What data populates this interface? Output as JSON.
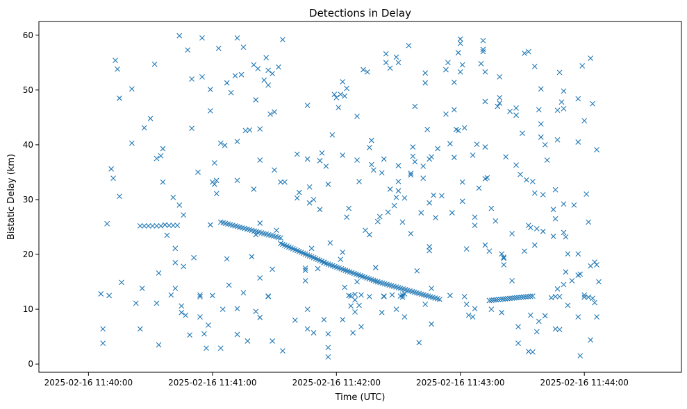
{
  "chart_data": {
    "type": "scatter",
    "title": "Detections in Delay",
    "xlabel": "Time (UTC)",
    "ylabel": "Bistatic Delay (km)",
    "marker": "x",
    "color": "#1f77b4",
    "grid": false,
    "legend": "none",
    "x_range": [
      "2025-02-16 11:39:36",
      "2025-02-16 11:44:47"
    ],
    "ylim": [
      -1.5,
      62.5
    ],
    "x_ticks": [
      {
        "t": "2025-02-16 11:40:00",
        "label": "2025-02-16 11:40:00"
      },
      {
        "t": "2025-02-16 11:41:00",
        "label": "2025-02-16 11:41:00"
      },
      {
        "t": "2025-02-16 11:42:00",
        "label": "2025-02-16 11:42:00"
      },
      {
        "t": "2025-02-16 11:43:00",
        "label": "2025-02-16 11:43:00"
      },
      {
        "t": "2025-02-16 11:44:00",
        "label": "2025-02-16 11:44:00"
      }
    ],
    "y_ticks": [
      0,
      10,
      20,
      30,
      40,
      50,
      60
    ],
    "x_time_unit": "seconds past 2025-02-16 11:39:00",
    "track_segments": [
      {
        "t_start": 85,
        "t_end": 95,
        "delay_start": 25.2,
        "delay_end": 25.2,
        "count": 6
      },
      {
        "t_start": 99,
        "t_end": 103,
        "delay_start": 25.3,
        "delay_end": 25.3,
        "count": 3
      },
      {
        "t_start": 124,
        "t_end": 153,
        "delay_start": 25.9,
        "delay_end": 23.0,
        "count": 26
      },
      {
        "t_start": 153,
        "t_end": 174,
        "delay_start": 22.0,
        "delay_end": 18.6,
        "count": 22
      },
      {
        "t_start": 174,
        "t_end": 200,
        "delay_start": 18.5,
        "delay_end": 15.0,
        "count": 26
      },
      {
        "t_start": 200,
        "t_end": 230,
        "delay_start": 15.0,
        "delay_end": 11.8,
        "count": 28
      },
      {
        "t_start": 254,
        "t_end": 275,
        "delay_start": 11.6,
        "delay_end": 12.4,
        "count": 20
      }
    ],
    "scatter_points": [
      [
        66,
        12.8
      ],
      [
        67,
        6.4
      ],
      [
        67,
        3.8
      ],
      [
        69,
        25.6
      ],
      [
        70,
        12.5
      ],
      [
        71,
        35.6
      ],
      [
        72,
        33.9
      ],
      [
        73,
        55.4
      ],
      [
        74,
        53.8
      ],
      [
        75,
        48.5
      ],
      [
        75,
        30.6
      ],
      [
        76,
        14.9
      ],
      [
        81,
        50.2
      ],
      [
        81,
        40.3
      ],
      [
        83,
        11.1
      ],
      [
        85,
        6.4
      ],
      [
        86,
        13.8
      ],
      [
        87,
        43.1
      ],
      [
        90,
        44.8
      ],
      [
        92,
        54.7
      ],
      [
        93,
        37.5
      ],
      [
        93,
        11.1
      ],
      [
        94,
        3.5
      ],
      [
        94,
        16.6
      ],
      [
        95,
        38.0
      ],
      [
        96,
        33.2
      ],
      [
        96,
        39.3
      ],
      [
        97,
        25.4
      ],
      [
        98,
        23.5
      ],
      [
        100,
        12.6
      ],
      [
        101,
        30.4
      ],
      [
        102,
        21.1
      ],
      [
        102,
        18.5
      ],
      [
        102,
        13.8
      ],
      [
        104,
        59.9
      ],
      [
        104,
        29.0
      ],
      [
        105,
        10.6
      ],
      [
        105,
        9.4
      ],
      [
        106,
        27.2
      ],
      [
        106,
        17.8
      ],
      [
        107,
        8.9
      ],
      [
        108,
        57.3
      ],
      [
        109,
        5.3
      ],
      [
        110,
        43.0
      ],
      [
        110,
        52.0
      ],
      [
        111,
        19.4
      ],
      [
        113,
        35.0
      ],
      [
        114,
        12.6
      ],
      [
        114,
        12.3
      ],
      [
        114,
        8.6
      ],
      [
        115,
        59.5
      ],
      [
        115,
        52.4
      ],
      [
        116,
        5.5
      ],
      [
        117,
        2.9
      ],
      [
        118,
        7.1
      ],
      [
        119,
        46.2
      ],
      [
        119,
        50.1
      ],
      [
        119,
        25.4
      ],
      [
        120,
        33.2
      ],
      [
        120,
        12.5
      ],
      [
        121,
        36.7
      ],
      [
        121,
        32.8
      ],
      [
        122,
        31.1
      ],
      [
        122,
        33.5
      ],
      [
        123,
        57.6
      ],
      [
        124,
        40.3
      ],
      [
        124,
        2.9
      ],
      [
        125,
        10.0
      ],
      [
        126,
        39.9
      ],
      [
        127,
        19.2
      ],
      [
        127,
        51.3
      ],
      [
        128,
        14.4
      ],
      [
        129,
        49.5
      ],
      [
        131,
        52.6
      ],
      [
        132,
        59.5
      ],
      [
        132,
        40.6
      ],
      [
        132,
        33.5
      ],
      [
        132,
        10.1
      ],
      [
        132,
        5.4
      ],
      [
        134,
        52.8
      ],
      [
        135,
        13.0
      ],
      [
        135,
        57.8
      ],
      [
        136,
        42.6
      ],
      [
        137,
        4.2
      ],
      [
        138,
        42.7
      ],
      [
        139,
        19.6
      ],
      [
        140,
        31.9
      ],
      [
        140,
        54.6
      ],
      [
        141,
        48.2
      ],
      [
        141,
        23.6
      ],
      [
        141,
        9.6
      ],
      [
        142,
        53.9
      ],
      [
        143,
        42.9
      ],
      [
        143,
        37.2
      ],
      [
        143,
        25.7
      ],
      [
        143,
        15.7
      ],
      [
        143,
        8.5
      ],
      [
        145,
        51.8
      ],
      [
        146,
        55.9
      ],
      [
        147,
        12.4
      ],
      [
        147,
        12.3
      ],
      [
        147,
        53.6
      ],
      [
        147,
        50.9
      ],
      [
        148,
        45.6
      ],
      [
        149,
        53.0
      ],
      [
        149,
        17.3
      ],
      [
        149,
        4.2
      ],
      [
        150,
        35.4
      ],
      [
        150,
        46.0
      ],
      [
        151,
        24.4
      ],
      [
        152,
        54.2
      ],
      [
        153,
        33.2
      ],
      [
        154,
        59.2
      ],
      [
        154,
        2.4
      ],
      [
        155,
        33.2
      ],
      [
        160,
        8.0
      ],
      [
        161,
        38.3
      ],
      [
        161,
        30.3
      ],
      [
        162,
        31.3
      ],
      [
        165,
        17.1
      ],
      [
        165,
        17.5
      ],
      [
        165,
        15.2
      ],
      [
        166,
        47.2
      ],
      [
        166,
        37.4
      ],
      [
        166,
        10.0
      ],
      [
        166,
        6.4
      ],
      [
        167,
        32.3
      ],
      [
        167,
        29.4
      ],
      [
        168,
        21.1
      ],
      [
        169,
        30.0
      ],
      [
        169,
        5.7
      ],
      [
        171,
        17.4
      ],
      [
        172,
        28.2
      ],
      [
        172,
        37.1
      ],
      [
        173,
        38.5
      ],
      [
        174,
        8.1
      ],
      [
        175,
        36.1
      ],
      [
        176,
        32.8
      ],
      [
        176,
        5.5
      ],
      [
        176,
        3.0
      ],
      [
        176,
        1.3
      ],
      [
        177,
        22.1
      ],
      [
        178,
        41.8
      ],
      [
        179,
        49.2
      ],
      [
        180,
        48.6
      ],
      [
        181,
        46.8
      ],
      [
        182,
        49.2
      ],
      [
        182,
        19.1
      ],
      [
        183,
        20.4
      ],
      [
        183,
        38.1
      ],
      [
        183,
        51.5
      ],
      [
        183,
        8.1
      ],
      [
        184,
        48.9
      ],
      [
        184,
        14.0
      ],
      [
        185,
        50.3
      ],
      [
        185,
        26.8
      ],
      [
        186,
        28.4
      ],
      [
        186,
        12.5
      ],
      [
        187,
        12.4
      ],
      [
        187,
        10.6
      ],
      [
        188,
        5.7
      ],
      [
        189,
        12.7
      ],
      [
        189,
        9.5
      ],
      [
        189,
        11.7
      ],
      [
        190,
        45.2
      ],
      [
        190,
        37.2
      ],
      [
        190,
        15.0
      ],
      [
        191,
        33.3
      ],
      [
        191,
        10.7
      ],
      [
        192,
        12.6
      ],
      [
        192,
        6.8
      ],
      [
        193,
        53.7
      ],
      [
        194,
        24.4
      ],
      [
        195,
        53.3
      ],
      [
        196,
        39.5
      ],
      [
        196,
        23.6
      ],
      [
        196,
        12.3
      ],
      [
        197,
        40.8
      ],
      [
        197,
        36.4
      ],
      [
        198,
        35.4
      ],
      [
        199,
        17.6
      ],
      [
        199,
        17.6
      ],
      [
        200,
        26.0
      ],
      [
        201,
        26.9
      ],
      [
        202,
        9.4
      ],
      [
        202,
        34.9
      ],
      [
        203,
        12.4
      ],
      [
        203,
        12.3
      ],
      [
        203,
        37.4
      ],
      [
        204,
        56.6
      ],
      [
        204,
        55.0
      ],
      [
        205,
        27.7
      ],
      [
        206,
        54.0
      ],
      [
        206,
        31.9
      ],
      [
        207,
        12.6
      ],
      [
        208,
        28.9
      ],
      [
        209,
        56.0
      ],
      [
        209,
        30.4
      ],
      [
        209,
        10.0
      ],
      [
        210,
        55.0
      ],
      [
        210,
        33.3
      ],
      [
        210,
        36.2
      ],
      [
        210,
        31.6
      ],
      [
        211,
        12.4
      ],
      [
        212,
        12.6
      ],
      [
        212,
        25.9
      ],
      [
        212,
        12.2
      ],
      [
        213,
        30.3
      ],
      [
        213,
        12.8
      ],
      [
        213,
        8.6
      ],
      [
        215,
        58.1
      ],
      [
        216,
        34.8
      ],
      [
        216,
        23.8
      ],
      [
        216,
        34.5
      ],
      [
        217,
        39.6
      ],
      [
        217,
        37.9
      ],
      [
        218,
        47.0
      ],
      [
        218,
        36.9
      ],
      [
        219,
        17.0
      ],
      [
        220,
        3.9
      ],
      [
        221,
        27.6
      ],
      [
        222,
        36.1
      ],
      [
        222,
        33.9
      ],
      [
        223,
        10.9
      ],
      [
        223,
        51.3
      ],
      [
        223,
        53.1
      ],
      [
        224,
        42.8
      ],
      [
        225,
        29.4
      ],
      [
        225,
        21.4
      ],
      [
        225,
        37.4
      ],
      [
        225,
        20.7
      ],
      [
        226,
        37.8
      ],
      [
        226,
        13.8
      ],
      [
        226,
        7.3
      ],
      [
        227,
        30.8
      ],
      [
        228,
        26.7
      ],
      [
        229,
        39.3
      ],
      [
        231,
        30.7
      ],
      [
        233,
        45.6
      ],
      [
        233,
        53.7
      ],
      [
        234,
        55.0
      ],
      [
        235,
        40.2
      ],
      [
        235,
        12.5
      ],
      [
        236,
        27.6
      ],
      [
        237,
        37.7
      ],
      [
        237,
        46.4
      ],
      [
        237,
        51.4
      ],
      [
        238,
        42.8
      ],
      [
        239,
        42.6
      ],
      [
        239,
        56.8
      ],
      [
        240,
        58.5
      ],
      [
        240,
        59.3
      ],
      [
        240,
        53.3
      ],
      [
        241,
        54.6
      ],
      [
        241,
        33.2
      ],
      [
        241,
        29.7
      ],
      [
        242,
        43.1
      ],
      [
        242,
        12.3
      ],
      [
        243,
        21.0
      ],
      [
        243,
        10.9
      ],
      [
        244,
        8.9
      ],
      [
        246,
        38.1
      ],
      [
        246,
        8.6
      ],
      [
        247,
        26.8
      ],
      [
        247,
        25.3
      ],
      [
        247,
        10.1
      ],
      [
        248,
        40.1
      ],
      [
        249,
        32.1
      ],
      [
        250,
        54.8
      ],
      [
        251,
        57.4
      ],
      [
        251,
        59.0
      ],
      [
        251,
        57.0
      ],
      [
        252,
        53.3
      ],
      [
        252,
        21.7
      ],
      [
        252,
        47.9
      ],
      [
        252,
        39.6
      ],
      [
        252,
        33.8
      ],
      [
        253,
        34.0
      ],
      [
        254,
        20.6
      ],
      [
        255,
        28.4
      ],
      [
        255,
        10.0
      ],
      [
        257,
        26.1
      ],
      [
        258,
        47.0
      ],
      [
        259,
        48.6
      ],
      [
        259,
        52.4
      ],
      [
        259,
        47.6
      ],
      [
        260,
        20.1
      ],
      [
        260,
        9.4
      ],
      [
        261,
        19.5
      ],
      [
        261,
        18.1
      ],
      [
        261,
        19.3
      ],
      [
        262,
        37.8
      ],
      [
        264,
        46.1
      ],
      [
        265,
        23.8
      ],
      [
        265,
        15.2
      ],
      [
        267,
        36.3
      ],
      [
        267,
        46.7
      ],
      [
        267,
        45.4
      ],
      [
        268,
        3.8
      ],
      [
        268,
        6.8
      ],
      [
        269,
        34.6
      ],
      [
        270,
        42.1
      ],
      [
        271,
        56.7
      ],
      [
        271,
        20.6
      ],
      [
        272,
        33.6
      ],
      [
        273,
        57.0
      ],
      [
        273,
        25.3
      ],
      [
        273,
        2.3
      ],
      [
        274,
        24.9
      ],
      [
        274,
        8.9
      ],
      [
        275,
        33.3
      ],
      [
        275,
        2.2
      ],
      [
        276,
        31.2
      ],
      [
        276,
        21.7
      ],
      [
        276,
        54.3
      ],
      [
        277,
        24.7
      ],
      [
        277,
        5.9
      ],
      [
        278,
        7.8
      ],
      [
        278,
        46.4
      ],
      [
        279,
        50.2
      ],
      [
        279,
        43.8
      ],
      [
        279,
        41.4
      ],
      [
        280,
        24.2
      ],
      [
        280,
        30.9
      ],
      [
        281,
        8.8
      ],
      [
        281,
        40.0
      ],
      [
        282,
        37.2
      ],
      [
        284,
        12.1
      ],
      [
        285,
        28.2
      ],
      [
        285,
        23.3
      ],
      [
        286,
        31.8
      ],
      [
        286,
        26.5
      ],
      [
        286,
        12.3
      ],
      [
        286,
        6.4
      ],
      [
        287,
        46.3
      ],
      [
        287,
        40.9
      ],
      [
        287,
        13.7
      ],
      [
        288,
        53.2
      ],
      [
        288,
        12.3
      ],
      [
        288,
        6.3
      ],
      [
        289,
        47.8
      ],
      [
        290,
        29.2
      ],
      [
        290,
        14.5
      ],
      [
        290,
        49.8
      ],
      [
        290,
        46.6
      ],
      [
        290,
        24.0
      ],
      [
        291,
        23.2
      ],
      [
        291,
        16.8
      ],
      [
        292,
        20.1
      ],
      [
        292,
        10.7
      ],
      [
        294,
        15.2
      ],
      [
        295,
        29.0
      ],
      [
        297,
        48.4
      ],
      [
        297,
        40.5
      ],
      [
        297,
        20.1
      ],
      [
        297,
        16.2
      ],
      [
        297,
        8.6
      ],
      [
        298,
        16.4
      ],
      [
        298,
        1.5
      ],
      [
        299,
        54.4
      ],
      [
        300,
        12.2
      ],
      [
        300,
        12.6
      ],
      [
        300,
        44.4
      ],
      [
        301,
        31.0
      ],
      [
        302,
        25.9
      ],
      [
        302,
        12.2
      ],
      [
        303,
        17.9
      ],
      [
        303,
        4.4
      ],
      [
        303,
        55.8
      ],
      [
        304,
        47.5
      ],
      [
        304,
        12.0
      ],
      [
        305,
        18.6
      ],
      [
        305,
        11.2
      ],
      [
        306,
        18.1
      ],
      [
        306,
        39.1
      ],
      [
        306,
        8.6
      ],
      [
        307,
        15.0
      ]
    ]
  }
}
